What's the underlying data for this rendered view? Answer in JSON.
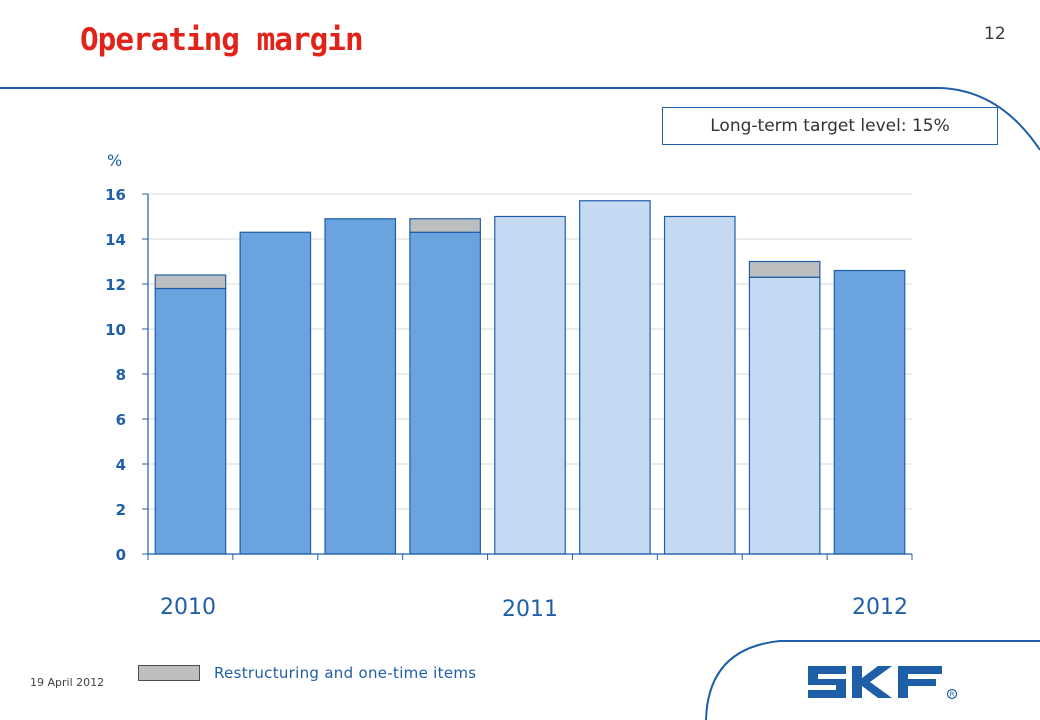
{
  "header": {
    "title": "Operating margin",
    "page_number": "12"
  },
  "target_note": "Long-term target level: 15%",
  "footer": {
    "date": "19 April 2012",
    "legend_label": "Restructuring and one-time items",
    "logo": "skf-logo"
  },
  "colors": {
    "title": "#e2231a",
    "accent_blue": "#1f5fa8",
    "bar_dark": "#6aa3df",
    "bar_light": "#c5daf2",
    "restructuring": "#bcbec0"
  },
  "chart_data": {
    "type": "bar",
    "stacked": true,
    "ylabel": "%",
    "ylim": [
      0,
      16
    ],
    "yticks": [
      0,
      2,
      4,
      6,
      8,
      10,
      12,
      14,
      16
    ],
    "grid": true,
    "year_labels": [
      {
        "label": "2010",
        "bar_index": 0
      },
      {
        "label": "2011",
        "bar_index": 4
      },
      {
        "label": "2012",
        "bar_index": 8
      }
    ],
    "bars": [
      {
        "value": 11.8,
        "extra": 0.6,
        "shade": "dark"
      },
      {
        "value": 14.3,
        "extra": 0,
        "shade": "dark"
      },
      {
        "value": 14.9,
        "extra": 0,
        "shade": "dark"
      },
      {
        "value": 14.3,
        "extra": 0.6,
        "shade": "dark"
      },
      {
        "value": 15.0,
        "extra": 0,
        "shade": "light"
      },
      {
        "value": 15.7,
        "extra": 0,
        "shade": "light"
      },
      {
        "value": 15.0,
        "extra": 0,
        "shade": "light"
      },
      {
        "value": 12.3,
        "extra": 0.7,
        "shade": "light"
      },
      {
        "value": 12.6,
        "extra": 0,
        "shade": "dark"
      }
    ],
    "legend": [
      {
        "name": "Restructuring and one-time items"
      }
    ]
  }
}
